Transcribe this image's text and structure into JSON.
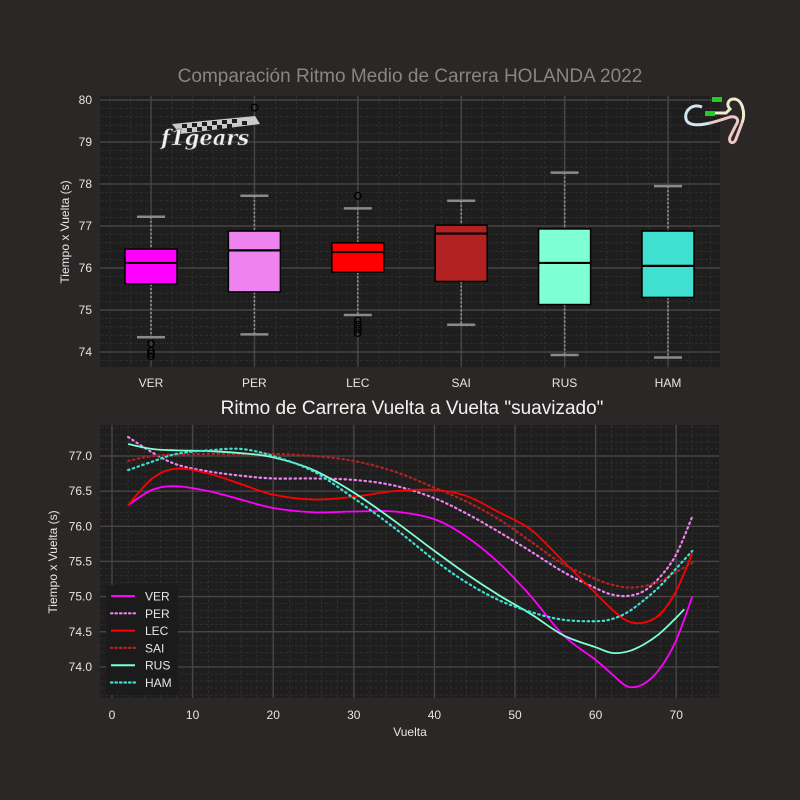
{
  "titles": {
    "top": "Comparación Ritmo Medio de Carrera HOLANDA 2022",
    "bottom": "Ritmo de Carrera Vuelta a Vuelta \"suavizado\""
  },
  "logos": {
    "left": "f1gears",
    "right": "circuit-map-zandvoort"
  },
  "colors": {
    "background": "#2b2726",
    "panel": "#1f1e1e",
    "grid_major": "#4a4444",
    "grid_minor": "#3a3636",
    "VER": "#ff00ff",
    "PER": "#ee82ee",
    "LEC": "#ff0000",
    "SAI": "#b22222",
    "RUS": "#7fffd4",
    "HAM": "#40e0d0"
  },
  "chart_data": [
    {
      "type": "box",
      "title": "Comparación Ritmo Medio de Carrera HOLANDA 2022",
      "xlabel": "",
      "ylabel": "Tiempo x Vuelta (s)",
      "ylim": [
        73.65,
        80.1
      ],
      "yticks": [
        74,
        75,
        76,
        77,
        78,
        79,
        80
      ],
      "grid": true,
      "categories": [
        "VER",
        "PER",
        "LEC",
        "SAI",
        "RUS",
        "HAM"
      ],
      "boxes": [
        {
          "name": "VER",
          "whisker_high": 77.22,
          "q3": 76.45,
          "median": 76.12,
          "q1": 75.62,
          "whisker_low": 74.35,
          "outliers": [
            74.2,
            74.02,
            73.96,
            73.9
          ],
          "color": "#ff00ff"
        },
        {
          "name": "PER",
          "whisker_high": 77.72,
          "q3": 76.88,
          "median": 76.42,
          "q1": 75.43,
          "whisker_low": 74.42,
          "outliers": [
            79.82
          ],
          "color": "#ee82ee"
        },
        {
          "name": "LEC",
          "whisker_high": 77.42,
          "q3": 76.6,
          "median": 76.38,
          "q1": 75.9,
          "whisker_low": 74.88,
          "outliers": [
            77.72,
            74.75,
            74.65,
            74.55,
            74.45
          ],
          "color": "#ff0000"
        },
        {
          "name": "SAI",
          "whisker_high": 77.6,
          "q3": 77.02,
          "median": 76.82,
          "q1": 75.68,
          "whisker_low": 74.65,
          "outliers": [],
          "color": "#b22222"
        },
        {
          "name": "RUS",
          "whisker_high": 78.27,
          "q3": 76.93,
          "median": 76.12,
          "q1": 75.13,
          "whisker_low": 73.93,
          "outliers": [],
          "color": "#7fffd4"
        },
        {
          "name": "HAM",
          "whisker_high": 77.95,
          "q3": 76.88,
          "median": 76.05,
          "q1": 75.3,
          "whisker_low": 73.87,
          "outliers": [],
          "color": "#40e0d0"
        }
      ]
    },
    {
      "type": "line",
      "title": "Ritmo de Carrera Vuelta a Vuelta \"suavizado\"",
      "xlabel": "Vuelta",
      "ylabel": "Tiempo x Vuelta (s)",
      "xlim": [
        -1.5,
        75.5
      ],
      "ylim": [
        73.55,
        77.45
      ],
      "xticks": [
        0,
        10,
        20,
        30,
        40,
        50,
        60,
        70
      ],
      "yticks": [
        74.0,
        74.5,
        75.0,
        75.5,
        76.0,
        76.5,
        77.0
      ],
      "grid": true,
      "legend_position": "bottom-left inside",
      "x": [
        2,
        5,
        8,
        12,
        16,
        20,
        25,
        30,
        35,
        40,
        44,
        48,
        52,
        56,
        60,
        62,
        64,
        66,
        68,
        70,
        72
      ],
      "series": [
        {
          "name": "VER",
          "style": "solid",
          "color": "#ff00ff",
          "values": [
            76.3,
            76.52,
            76.57,
            76.5,
            76.38,
            76.26,
            76.2,
            76.21,
            76.21,
            76.1,
            75.85,
            75.48,
            75.0,
            74.45,
            74.1,
            73.9,
            73.72,
            73.76,
            73.98,
            74.38,
            75.0
          ]
        },
        {
          "name": "PER",
          "style": "dotted",
          "color": "#ee82ee",
          "values": [
            77.27,
            77.05,
            76.88,
            76.78,
            76.72,
            76.68,
            76.68,
            76.66,
            76.58,
            76.4,
            76.18,
            75.92,
            75.64,
            75.35,
            75.12,
            75.03,
            75.01,
            75.08,
            75.28,
            75.6,
            76.14
          ]
        },
        {
          "name": "LEC",
          "style": "solid",
          "color": "#ff0000",
          "values": [
            76.3,
            76.68,
            76.82,
            76.75,
            76.6,
            76.45,
            76.38,
            76.42,
            76.5,
            76.52,
            76.43,
            76.2,
            75.95,
            75.5,
            75.05,
            74.82,
            74.65,
            74.63,
            74.75,
            75.08,
            75.62
          ]
        },
        {
          "name": "SAI",
          "style": "dotted",
          "color": "#b22222",
          "values": [
            76.93,
            77.0,
            77.02,
            77.03,
            77.03,
            77.03,
            77.0,
            76.93,
            76.78,
            76.55,
            76.35,
            76.1,
            75.78,
            75.46,
            75.25,
            75.17,
            75.13,
            75.15,
            75.22,
            75.35,
            75.48
          ]
        },
        {
          "name": "RUS",
          "style": "solid",
          "color": "#7fffd4",
          "values": [
            77.17,
            77.1,
            77.08,
            77.07,
            77.04,
            76.98,
            76.8,
            76.48,
            76.08,
            75.65,
            75.32,
            75.02,
            74.75,
            74.45,
            74.28,
            74.2,
            74.22,
            74.32,
            74.48,
            74.7,
            74.82
          ]
        },
        {
          "name": "HAM",
          "style": "dotted",
          "color": "#40e0d0",
          "values": [
            76.8,
            76.92,
            77.03,
            77.08,
            77.1,
            77.0,
            76.78,
            76.4,
            75.98,
            75.52,
            75.2,
            74.95,
            74.78,
            74.67,
            74.65,
            74.68,
            74.78,
            74.95,
            75.15,
            75.4,
            75.65
          ]
        }
      ]
    }
  ]
}
